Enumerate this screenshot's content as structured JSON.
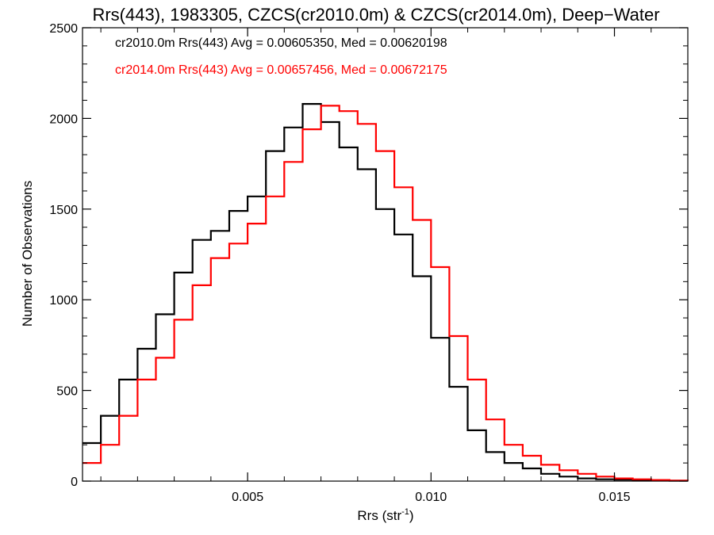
{
  "chart_data": {
    "type": "histogram-step",
    "title": "Rrs(443), 1983305, CZCS(cr2010.0m) & CZCS(cr2014.0m), Deep−Water",
    "xlabel": "Rrs (str",
    "xlabel_sup": "-1",
    "xlabel_close": ")",
    "ylabel": "Number of Observations",
    "xlim": [
      0.0005,
      0.017
    ],
    "ylim": [
      0,
      2500
    ],
    "x_ticks": [
      0.005,
      0.01,
      0.015
    ],
    "x_tick_labels": [
      "0.005",
      "0.010",
      "0.015"
    ],
    "y_ticks": [
      0,
      500,
      1000,
      1500,
      2000,
      2500
    ],
    "y_tick_labels": [
      "0",
      "500",
      "1000",
      "1500",
      "2000",
      "2500"
    ],
    "legend_position": "top-left",
    "series": [
      {
        "name": "cr2010.0m Rrs(443) Avg = 0.00605350, Med = 0.00620198",
        "color": "#000000",
        "x": [
          0.0005,
          0.001,
          0.0015,
          0.002,
          0.0025,
          0.003,
          0.0035,
          0.004,
          0.0045,
          0.005,
          0.0055,
          0.006,
          0.0065,
          0.007,
          0.0075,
          0.008,
          0.0085,
          0.009,
          0.0095,
          0.01,
          0.0105,
          0.011,
          0.0115,
          0.012,
          0.0125,
          0.013,
          0.0135,
          0.014,
          0.0145,
          0.015,
          0.0155,
          0.016,
          0.0165,
          0.017
        ],
        "values": [
          210,
          360,
          560,
          730,
          920,
          1150,
          1330,
          1380,
          1490,
          1570,
          1820,
          1950,
          2080,
          1980,
          1840,
          1720,
          1500,
          1360,
          1130,
          790,
          520,
          280,
          160,
          100,
          70,
          40,
          25,
          15,
          10,
          8,
          5,
          3,
          2,
          2
        ]
      },
      {
        "name": "cr2014.0m Rrs(443) Avg = 0.00657456, Med = 0.00672175",
        "color": "#ff0000",
        "x": [
          0.0005,
          0.001,
          0.0015,
          0.002,
          0.0025,
          0.003,
          0.0035,
          0.004,
          0.0045,
          0.005,
          0.0055,
          0.006,
          0.0065,
          0.007,
          0.0075,
          0.008,
          0.0085,
          0.009,
          0.0095,
          0.01,
          0.0105,
          0.011,
          0.0115,
          0.012,
          0.0125,
          0.013,
          0.0135,
          0.014,
          0.0145,
          0.015,
          0.0155,
          0.016,
          0.0165,
          0.017
        ],
        "values": [
          100,
          200,
          360,
          560,
          680,
          890,
          1080,
          1230,
          1310,
          1420,
          1570,
          1760,
          1940,
          2070,
          2040,
          1970,
          1820,
          1620,
          1440,
          1180,
          800,
          560,
          340,
          200,
          140,
          90,
          60,
          40,
          25,
          15,
          10,
          6,
          3,
          2
        ]
      }
    ]
  }
}
